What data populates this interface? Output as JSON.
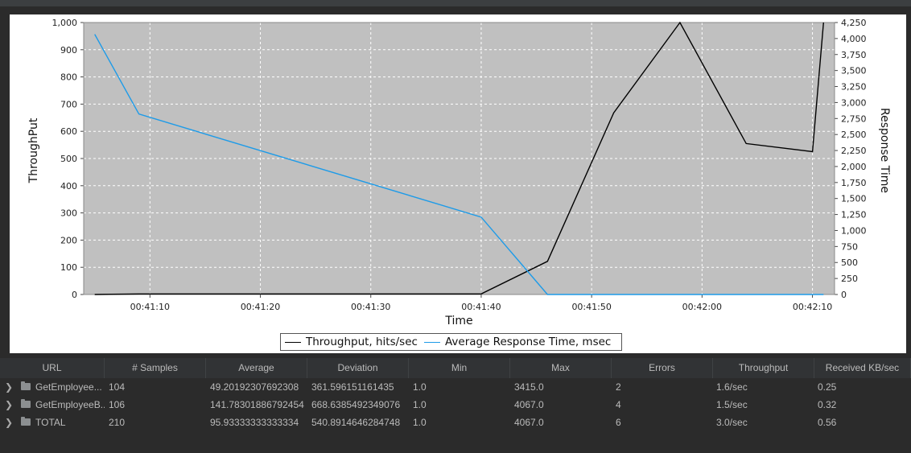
{
  "chart_data": {
    "type": "line",
    "xlabel": "Time",
    "ylabel_left": "ThroughPut",
    "ylabel_right": "Response Time",
    "x_ticks": [
      "00:41:10",
      "00:41:20",
      "00:41:30",
      "00:41:40",
      "00:41:50",
      "00:42:00",
      "00:42:10"
    ],
    "x_range": [
      "00:41:04",
      "00:42:12"
    ],
    "ylim_left": [
      0,
      1000
    ],
    "y_ticks_left": [
      "0",
      "100",
      "200",
      "300",
      "400",
      "500",
      "600",
      "700",
      "800",
      "900",
      "1,000"
    ],
    "ylim_right": [
      0,
      4250
    ],
    "y_ticks_right": [
      "0",
      "250",
      "500",
      "750",
      "1,000",
      "1,250",
      "1,500",
      "1,750",
      "2,000",
      "2,250",
      "2,500",
      "2,750",
      "3,000",
      "3,250",
      "3,500",
      "3,750",
      "4,000",
      "4,250"
    ],
    "grid": true,
    "background": "#c0c0c0",
    "legend_position": "bottom",
    "series": [
      {
        "name": "Throughput, hits/sec",
        "axis": "left",
        "color": "#000000",
        "x": [
          "00:41:05",
          "00:41:09",
          "00:41:40",
          "00:41:46",
          "00:41:52",
          "00:41:58",
          "00:42:04",
          "00:42:10",
          "00:42:11"
        ],
        "values": [
          0,
          2,
          2,
          122,
          668,
          1000,
          555,
          525,
          1000
        ]
      },
      {
        "name": "Average Response Time, msec",
        "axis": "right",
        "color": "#1e9be8",
        "x": [
          "00:41:05",
          "00:41:09",
          "00:41:40",
          "00:41:46",
          "00:42:11"
        ],
        "values": [
          4067,
          2820,
          1210,
          0,
          0
        ]
      }
    ]
  },
  "table": {
    "columns": [
      "URL",
      "# Samples",
      "Average",
      "Deviation",
      "Min",
      "Max",
      "Errors",
      "Throughput",
      "Received KB/sec"
    ],
    "rows": [
      {
        "url": "GetEmployee...",
        "samples": "104",
        "average": "49.20192307692308",
        "deviation": "361.596151161435",
        "min": "1.0",
        "max": "3415.0",
        "errors": "2",
        "throughput": "1.6/sec",
        "received": "0.25"
      },
      {
        "url": "GetEmployeeB...",
        "samples": "106",
        "average": "141.78301886792454",
        "deviation": "668.6385492349076",
        "min": "1.0",
        "max": "4067.0",
        "errors": "4",
        "throughput": "1.5/sec",
        "received": "0.32"
      },
      {
        "url": "TOTAL",
        "samples": "210",
        "average": "95.93333333333334",
        "deviation": "540.8914646284748",
        "min": "1.0",
        "max": "4067.0",
        "errors": "6",
        "throughput": "3.0/sec",
        "received": "0.56"
      }
    ]
  }
}
